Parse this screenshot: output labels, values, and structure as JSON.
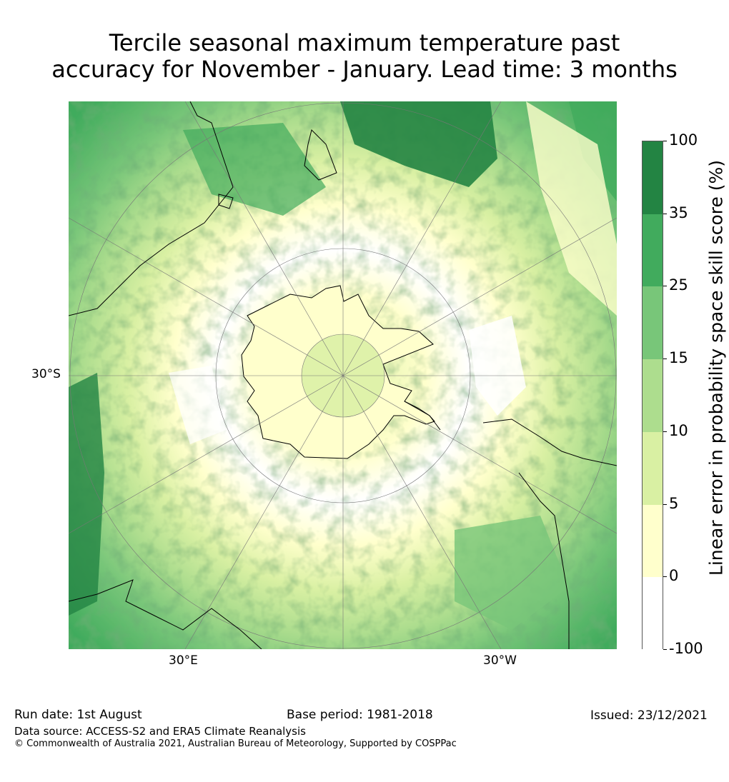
{
  "title": {
    "line1": "Tercile seasonal maximum temperature past",
    "line2": "accuracy for November - January. Lead time: 3 months"
  },
  "map": {
    "projection": "south-polar stereographic",
    "labels": {
      "lat_30s": "30°S",
      "lon_30e": "30°E",
      "lon_30w": "30°W"
    }
  },
  "colorbar": {
    "label": "Linear error in probability space skill score (%)",
    "ticks": [
      "100",
      "35",
      "25",
      "15",
      "10",
      "5",
      "0",
      "-100"
    ],
    "bins": [
      {
        "from": "-100",
        "to": "0",
        "color": "#ffffff"
      },
      {
        "from": "0",
        "to": "5",
        "color": "#ffffcc"
      },
      {
        "from": "5",
        "to": "10",
        "color": "#d9f0a3"
      },
      {
        "from": "10",
        "to": "15",
        "color": "#addd8e"
      },
      {
        "from": "15",
        "to": "25",
        "color": "#78c679"
      },
      {
        "from": "25",
        "to": "35",
        "color": "#41ab5d"
      },
      {
        "from": "35",
        "to": "100",
        "color": "#238443"
      }
    ]
  },
  "footer": {
    "run_date": "Run date: 1st August",
    "base_period": "Base period: 1981-2018",
    "issued": "Issued: 23/12/2021",
    "data_source": "Data source: ACCESS-S2 and ERA5 Climate Reanalysis",
    "copyright": "© Commonwealth of Australia 2021, Australian Bureau of Meteorology, Supported by COSPPac"
  }
}
